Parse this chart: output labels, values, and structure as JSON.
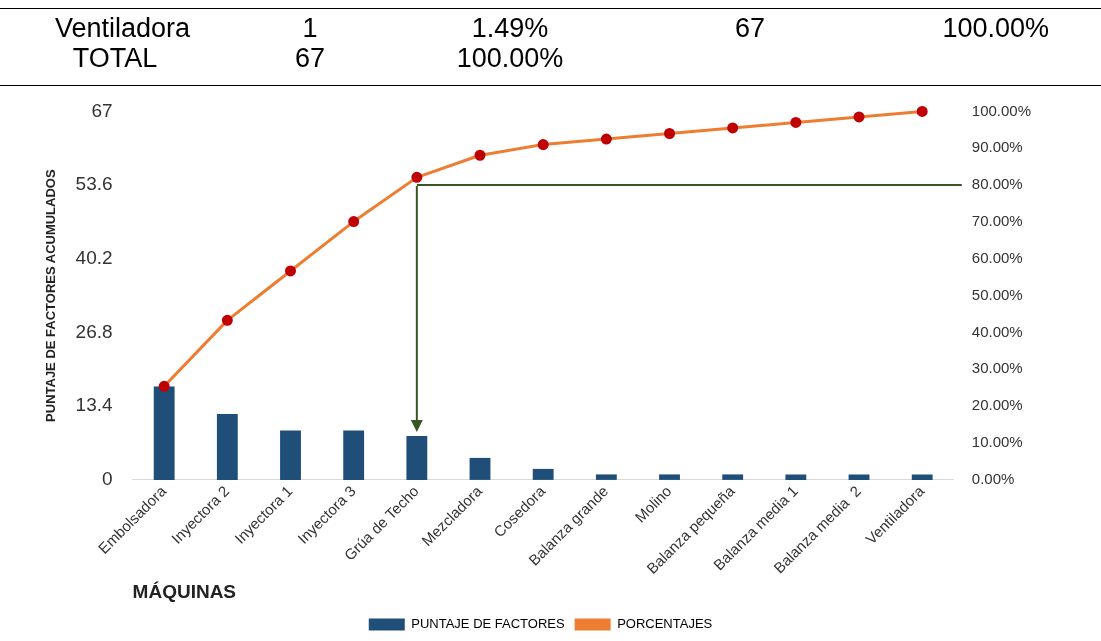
{
  "chart_data": {
    "type": "bar",
    "ylabel": "PUNTAJE DE FACTORES ACUMULADOS",
    "xlabel": "MÁQUINAS",
    "annotations": [
      "Ventiladora",
      "1",
      "1.49%",
      "67",
      "100.00%",
      "TOTAL",
      "67",
      "100.00%"
    ],
    "categories": [
      "Embolsadora",
      "Inyectora 2",
      "Inyectora 1",
      "Inyectora 3",
      "Grúa de Techo",
      "Mezcladora",
      "Cosedora",
      "Balanza grande",
      "Molino",
      "Balanza pequeña",
      "Balanza media 1",
      "Balanza media  2",
      "Ventiladora"
    ],
    "series": [
      {
        "name": "PUNTAJE DE FACTORES",
        "color": "#1f4e79",
        "values": [
          17,
          12,
          9,
          9,
          8,
          4,
          2,
          1,
          1,
          1,
          1,
          1,
          1
        ]
      },
      {
        "name": "PORCENTAJES",
        "type": "line",
        "axis": "y2",
        "color": "#ed7d31",
        "values": [
          25.4,
          43.3,
          56.7,
          70.1,
          82.1,
          88.1,
          91,
          92.5,
          94,
          95.5,
          97,
          98.5,
          100
        ]
      }
    ],
    "ylim": [
      0,
      67
    ],
    "yticks": [
      0,
      13.4,
      26.8,
      40.2,
      53.6,
      67
    ],
    "y2lim": [
      0,
      100
    ],
    "y2ticks": [
      {
        "value": 0,
        "label": "0.00%"
      },
      {
        "value": 10,
        "label": "10.00%"
      },
      {
        "value": 20,
        "label": "20.00%"
      },
      {
        "value": 30,
        "label": "30.00%"
      },
      {
        "value": 40,
        "label": "40.00%"
      },
      {
        "value": 50,
        "label": "50.00%"
      },
      {
        "value": 60,
        "label": "60.00%"
      },
      {
        "value": 70,
        "label": "70.00%"
      },
      {
        "value": 80,
        "label": "80.00%"
      },
      {
        "value": 90,
        "label": "90.00%"
      },
      {
        "value": 100,
        "label": "100.00%"
      }
    ],
    "ref_lines": [
      {
        "axis": "y2",
        "value": 80,
        "color": "#375623"
      }
    ],
    "grid": false,
    "legend": "bottom",
    "marker": "circle"
  }
}
